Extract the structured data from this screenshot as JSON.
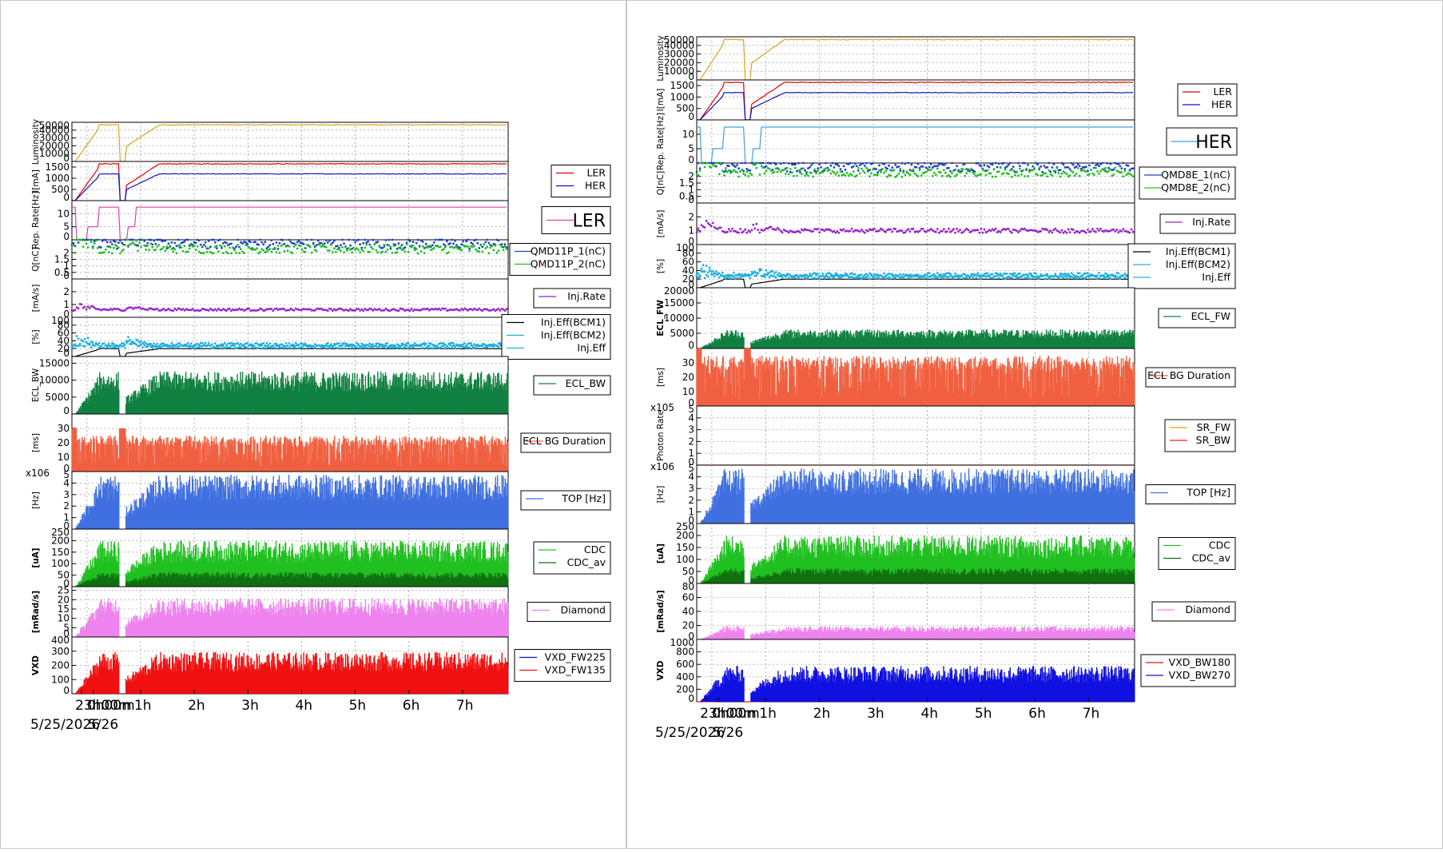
{
  "panels": [
    {
      "side": "LER",
      "date_label": "5/25/2026",
      "date_label_2": "5/26",
      "time_ticks": [
        "23h00m",
        "0h00m",
        "1h",
        "2h",
        "3h",
        "4h",
        "5h",
        "6h",
        "7h"
      ],
      "time_tick_values": [
        -0.1,
        0.12,
        1.0,
        2.0,
        3.0,
        4.0,
        5.0,
        6.0,
        7.0
      ],
      "tag": "LER"
    },
    {
      "side": "HER",
      "date_label": "5/25/2026",
      "date_label_2": "5/26",
      "time_ticks": [
        "23h00m",
        "0h00m",
        "1h",
        "2h",
        "3h",
        "4h",
        "5h",
        "6h",
        "7h"
      ],
      "time_tick_values": [
        -0.1,
        0.12,
        1.0,
        2.0,
        3.0,
        4.0,
        5.0,
        6.0,
        7.0
      ],
      "tag": "HER"
    }
  ],
  "chart_data": [
    {
      "type": "line",
      "title": "",
      "x_range_hours": [
        -0.28,
        7.85
      ],
      "rows": [
        {
          "ylabel": "Luminosity",
          "ylim": [
            0,
            50000
          ],
          "ticks": [
            "50000",
            "40000",
            "30000",
            "20000",
            "10000",
            "0"
          ],
          "series": [
            {
              "name": "",
              "color": "#e0a020",
              "level": 47000
            }
          ]
        },
        {
          "ylabel": "I[mA]",
          "ylim": [
            0,
            1750
          ],
          "ticks": [
            "1500",
            "1000",
            "500",
            "0"
          ],
          "series": [
            {
              "name": "LER",
              "color": "#e00000",
              "level": 1650
            },
            {
              "name": "HER",
              "color": "#1010c0",
              "level": 1200
            }
          ]
        },
        {
          "ylabel": "Rep. Rate[Hz]",
          "ylim": [
            0,
            15
          ],
          "ticks": [
            "10",
            "5",
            "0"
          ],
          "series": [
            {
              "name": "LER",
              "color": "#e040a0",
              "level": 12.5
            }
          ]
        },
        {
          "ylabel": "Q[nC]",
          "ylim": [
            0,
            3
          ],
          "ticks": [
            "2",
            "1.5",
            "1",
            "0.5",
            "0"
          ],
          "series": [
            {
              "name": "QMD11P_1(nC)",
              "color": "#2040d0",
              "level": 2.7
            },
            {
              "name": "QMD11P_2(nC)",
              "color": "#20c020",
              "level": 2.3
            }
          ]
        },
        {
          "ylabel": "[mA/s]",
          "ylim": [
            0,
            3
          ],
          "ticks": [
            "2",
            "1",
            "0"
          ],
          "series": [
            {
              "name": "Inj.Rate",
              "color": "#9a20d0",
              "level": 0.6
            }
          ]
        },
        {
          "ylabel": "[%]",
          "ylim": [
            0,
            100
          ],
          "ticks": [
            "100",
            "80",
            "60",
            "40",
            "20",
            "0"
          ],
          "series": [
            {
              "name": "Inj.Eff(BCM1)",
              "color": "#000000",
              "level": 20
            },
            {
              "name": "Inj.Eff(BCM2)",
              "color": "#20b0e0",
              "level": 25
            },
            {
              "name": "Inj.Eff",
              "color": "#20b0e0",
              "level": 30
            }
          ]
        },
        {
          "ylabel": "ECL_BW",
          "ylim": [
            0,
            17000
          ],
          "ticks": [
            "15000",
            "10000",
            "5000",
            "0"
          ],
          "series": [
            {
              "name": "ECL_BW",
              "color": "#108040",
              "level": 12000
            }
          ]
        },
        {
          "ylabel": "[ms]",
          "ylim": [
            0,
            40
          ],
          "ticks": [
            "30",
            "20",
            "10",
            "0"
          ],
          "series": [
            {
              "name": "ECL BG Duration",
              "color": "#f06040",
              "level": 20
            }
          ]
        },
        {
          "ylabel": "[Hz]",
          "ylim": [
            0,
            5
          ],
          "multiplier": "x10^6",
          "ticks": [
            "5",
            "4",
            "3",
            "2",
            "1",
            "0"
          ],
          "series": [
            {
              "name": "TOP [Hz]",
              "color": "#4070e0",
              "level": 4.5
            }
          ]
        },
        {
          "ylabel": "[uA]",
          "ylim": [
            0,
            250
          ],
          "ticks": [
            "250",
            "200",
            "150",
            "100",
            "50",
            "0"
          ],
          "series": [
            {
              "name": "CDC",
              "color": "#20c020",
              "level": 190
            },
            {
              "name": "CDC_av",
              "color": "#107010",
              "level": 60
            }
          ]
        },
        {
          "ylabel": "[mRad/s]",
          "ylim": [
            0,
            27
          ],
          "ticks": [
            "25",
            "20",
            "15",
            "10",
            "5",
            "0"
          ],
          "series": [
            {
              "name": "Diamond",
              "color": "#ee82ee",
              "level": 20
            }
          ]
        },
        {
          "ylabel": "VXD",
          "ylim": [
            0,
            400
          ],
          "ticks": [
            "400",
            "300",
            "200",
            "100",
            "0"
          ],
          "series": [
            {
              "name": "VXD_FW225",
              "color": "#1010e0",
              "level": 160
            },
            {
              "name": "VXD_FW135",
              "color": "#f01010",
              "level": 280
            }
          ]
        }
      ]
    },
    {
      "type": "line",
      "title": "",
      "x_range_hours": [
        -0.28,
        7.85
      ],
      "rows": [
        {
          "ylabel": "Luminosity",
          "ylim": [
            0,
            50000
          ],
          "ticks": [
            "50000",
            "40000",
            "30000",
            "20000",
            "10000",
            "0"
          ],
          "series": [
            {
              "name": "",
              "color": "#e0a020",
              "level": 47000
            }
          ]
        },
        {
          "ylabel": "I[mA]",
          "ylim": [
            0,
            1750
          ],
          "ticks": [
            "1500",
            "1000",
            "500",
            "0"
          ],
          "series": [
            {
              "name": "LER",
              "color": "#e00000",
              "level": 1650
            },
            {
              "name": "HER",
              "color": "#1010c0",
              "level": 1200
            }
          ]
        },
        {
          "ylabel": "Rep. Rate[Hz]",
          "ylim": [
            0,
            15
          ],
          "ticks": [
            "10",
            "5",
            "0"
          ],
          "series": [
            {
              "name": "HER",
              "color": "#40a0e0",
              "level": 12.5
            }
          ]
        },
        {
          "ylabel": "Q[nC]",
          "ylim": [
            0,
            3
          ],
          "ticks": [
            "2",
            "1.5",
            "1",
            "0.5",
            "0"
          ],
          "series": [
            {
              "name": "QMD8E_1(nC)",
              "color": "#2040d0",
              "level": 2.7
            },
            {
              "name": "QMD8E_2(nC)",
              "color": "#20c020",
              "level": 2.3
            }
          ]
        },
        {
          "ylabel": "[mA/s]",
          "ylim": [
            0,
            3
          ],
          "ticks": [
            "2",
            "1",
            "0"
          ],
          "series": [
            {
              "name": "Inj.Rate",
              "color": "#9a20d0",
              "level": 1.0
            }
          ]
        },
        {
          "ylabel": "[%]",
          "ylim": [
            0,
            100
          ],
          "ticks": [
            "100",
            "80",
            "60",
            "40",
            "20",
            "0"
          ],
          "series": [
            {
              "name": "Inj.Eff(BCM1)",
              "color": "#000000",
              "level": 20
            },
            {
              "name": "Inj.Eff(BCM2)",
              "color": "#20b0e0",
              "level": 25
            },
            {
              "name": "Inj.Eff",
              "color": "#20b0e0",
              "level": 30
            }
          ]
        },
        {
          "ylabel": "ECL_FW",
          "ylim": [
            0,
            20000
          ],
          "ticks": [
            "20000",
            "15000",
            "10000",
            "5000",
            "0"
          ],
          "series": [
            {
              "name": "ECL_FW",
              "color": "#108040",
              "level": 6000
            }
          ]
        },
        {
          "ylabel": "[ms]",
          "ylim": [
            0,
            40
          ],
          "ticks": [
            "30",
            "20",
            "10",
            "0"
          ],
          "series": [
            {
              "name": "ECL BG Duration",
              "color": "#f06040",
              "level": 28
            }
          ]
        },
        {
          "ylabel": "Photon Rate",
          "ylim": [
            0,
            5
          ],
          "multiplier": "x10^5",
          "ticks": [
            "5",
            "4",
            "3",
            "2",
            "1",
            "0"
          ],
          "series": [
            {
              "name": "SR_FW",
              "color": "#f0a000",
              "level": 0
            },
            {
              "name": "SR_BW",
              "color": "#f02020",
              "level": 0
            }
          ]
        },
        {
          "ylabel": "[Hz]",
          "ylim": [
            0,
            5
          ],
          "multiplier": "x10^6",
          "ticks": [
            "5",
            "4",
            "3",
            "2",
            "1",
            "0"
          ],
          "series": [
            {
              "name": "TOP [Hz]",
              "color": "#4070e0",
              "level": 4.5
            }
          ]
        },
        {
          "ylabel": "[uA]",
          "ylim": [
            0,
            250
          ],
          "ticks": [
            "250",
            "200",
            "150",
            "100",
            "50",
            "0"
          ],
          "series": [
            {
              "name": "CDC",
              "color": "#20c020",
              "level": 190
            },
            {
              "name": "CDC_av",
              "color": "#107010",
              "level": 60
            }
          ]
        },
        {
          "ylabel": "[mRad/s]",
          "ylim": [
            0,
            80
          ],
          "ticks": [
            "80",
            "60",
            "40",
            "20",
            "0"
          ],
          "series": [
            {
              "name": "Diamond",
              "color": "#ee82ee",
              "level": 18
            }
          ]
        },
        {
          "ylabel": "VXD",
          "ylim": [
            0,
            1000
          ],
          "ticks": [
            "1000",
            "800",
            "600",
            "400",
            "200",
            "0"
          ],
          "series": [
            {
              "name": "VXD_BW180",
              "color": "#f01010",
              "level": 10
            },
            {
              "name": "VXD_BW270",
              "color": "#1010e0",
              "level": 550
            }
          ]
        }
      ]
    }
  ]
}
